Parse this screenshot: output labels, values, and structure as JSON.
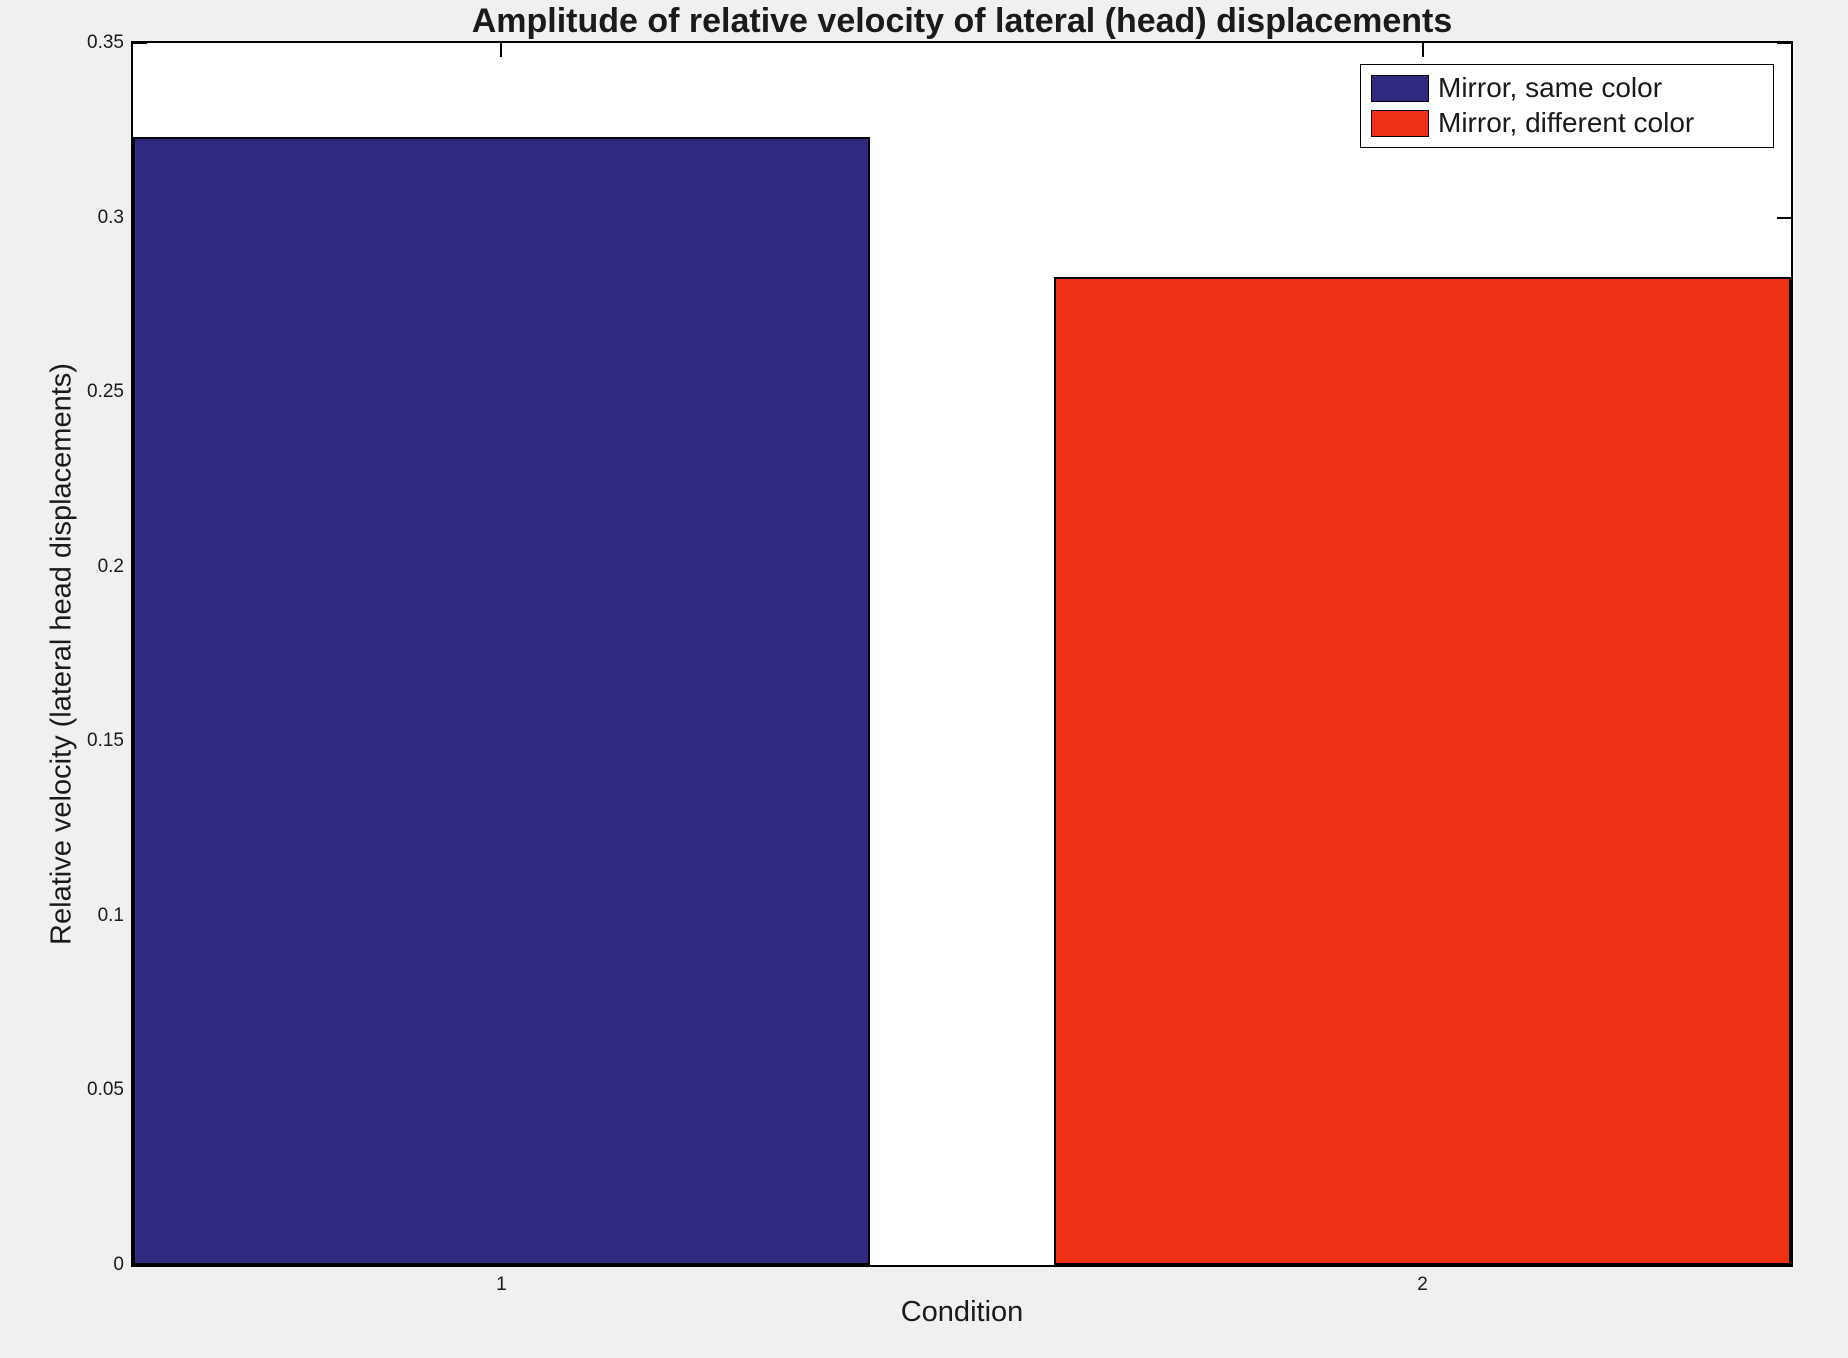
{
  "figure": {
    "background_color": "#f0f0f0",
    "plot_background_color": "#ffffff",
    "axis_color": "#000000",
    "text_color": "#1a1a1a"
  },
  "chart_data": {
    "type": "bar",
    "title": "Amplitude of relative velocity of lateral (head) displacements",
    "xlabel": "Condition",
    "ylabel": "Relative velocity (lateral head displacements)",
    "categories": [
      "1",
      "2"
    ],
    "values": [
      0.323,
      0.283
    ],
    "bar_colors": [
      "#2f2a80",
      "#ee3014"
    ],
    "bar_edge_color": "#000000",
    "bar_width_fraction": 0.8,
    "xlim": [
      0.6,
      2.4
    ],
    "ylim": [
      0,
      0.35
    ],
    "yticks": [
      0,
      0.05,
      0.1,
      0.15,
      0.2,
      0.25,
      0.3,
      0.35
    ],
    "ytick_labels": [
      "0",
      "0.05",
      "0.1",
      "0.15",
      "0.2",
      "0.25",
      "0.3",
      "0.35"
    ],
    "grid": false,
    "legend": {
      "position": "top-right",
      "entries": [
        {
          "label": "Mirror, same color",
          "color": "#2f2a80"
        },
        {
          "label": "Mirror, different color",
          "color": "#ee3014"
        }
      ]
    }
  }
}
